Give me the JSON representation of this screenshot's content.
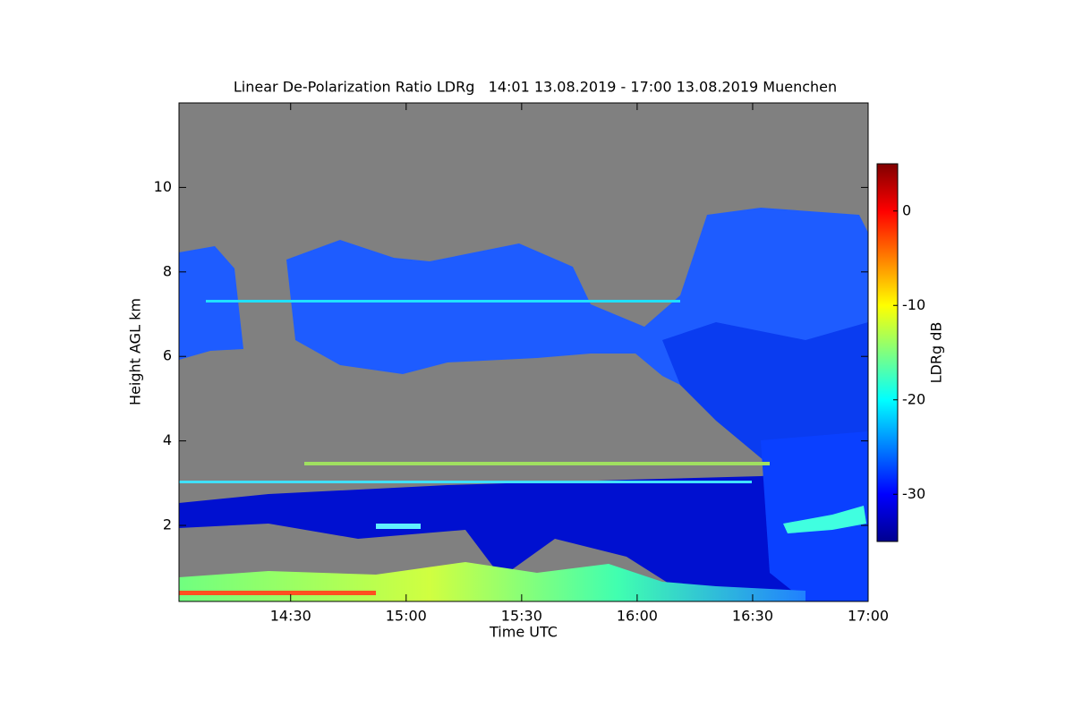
{
  "chart_data": {
    "type": "heatmap",
    "title": "Linear De-Polarization Ratio LDRg   14:01 13.08.2019 - 17:00 13.08.2019 Muenchen",
    "x_label": "Time UTC",
    "y_label": "Height AGL km",
    "colorbar_label": "LDRg dB",
    "xlim": [
      841,
      1020
    ],
    "xticks": [
      {
        "value": 870,
        "label": "14:30"
      },
      {
        "value": 900,
        "label": "15:00"
      },
      {
        "value": 930,
        "label": "15:30"
      },
      {
        "value": 960,
        "label": "16:00"
      },
      {
        "value": 990,
        "label": "16:30"
      },
      {
        "value": 1020,
        "label": "17:00"
      }
    ],
    "ylim": [
      0.2,
      12
    ],
    "yticks": [
      2,
      4,
      6,
      8,
      10
    ],
    "clim": [
      -35,
      5
    ],
    "cticks": [
      0,
      -10,
      -20,
      -30
    ],
    "colormap": "jet"
  }
}
